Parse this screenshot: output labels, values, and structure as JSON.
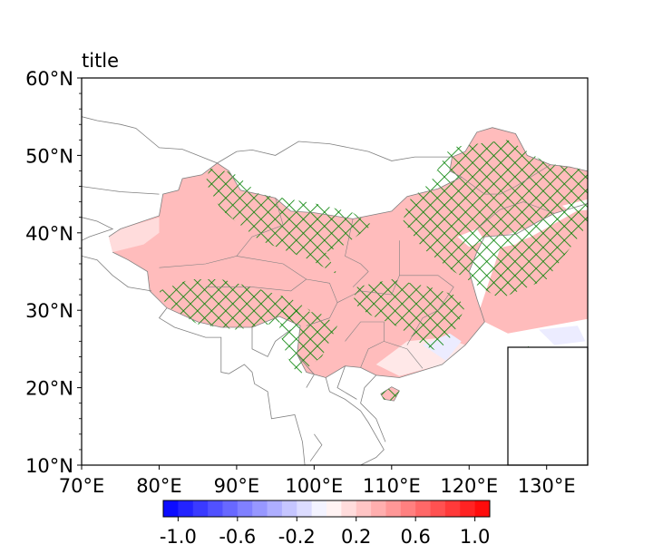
{
  "title": "title",
  "map": {
    "lon_range": [
      70,
      135.3
    ],
    "lat_range": [
      10,
      60
    ],
    "x_ticks": [
      {
        "value": 70,
        "label": "70°E"
      },
      {
        "value": 80,
        "label": "80°E"
      },
      {
        "value": 90,
        "label": "90°E"
      },
      {
        "value": 100,
        "label": "100°E"
      },
      {
        "value": 110,
        "label": "110°E"
      },
      {
        "value": 120,
        "label": "120°E"
      },
      {
        "value": 130,
        "label": "130°E"
      }
    ],
    "y_ticks": [
      {
        "value": 60,
        "label": "60°N"
      },
      {
        "value": 50,
        "label": "50°N"
      },
      {
        "value": 40,
        "label": "40°N"
      },
      {
        "value": 30,
        "label": "30°N"
      },
      {
        "value": 20,
        "label": "20°N"
      },
      {
        "value": 10,
        "label": "10°N"
      }
    ],
    "field_color": "#ffbcbc",
    "hatch_color": "#008000",
    "border_color": "#808080"
  },
  "colorbar": {
    "colormap": "bwr",
    "range": [
      -1.1,
      1.1
    ],
    "levels": 22,
    "ticks": [
      {
        "value": -1.0,
        "label": "-1.0"
      },
      {
        "value": -0.6,
        "label": "-0.6"
      },
      {
        "value": -0.2,
        "label": "-0.2"
      },
      {
        "value": 0.2,
        "label": "0.2"
      },
      {
        "value": 0.6,
        "label": "0.6"
      },
      {
        "value": 1.0,
        "label": "1.0"
      }
    ]
  }
}
